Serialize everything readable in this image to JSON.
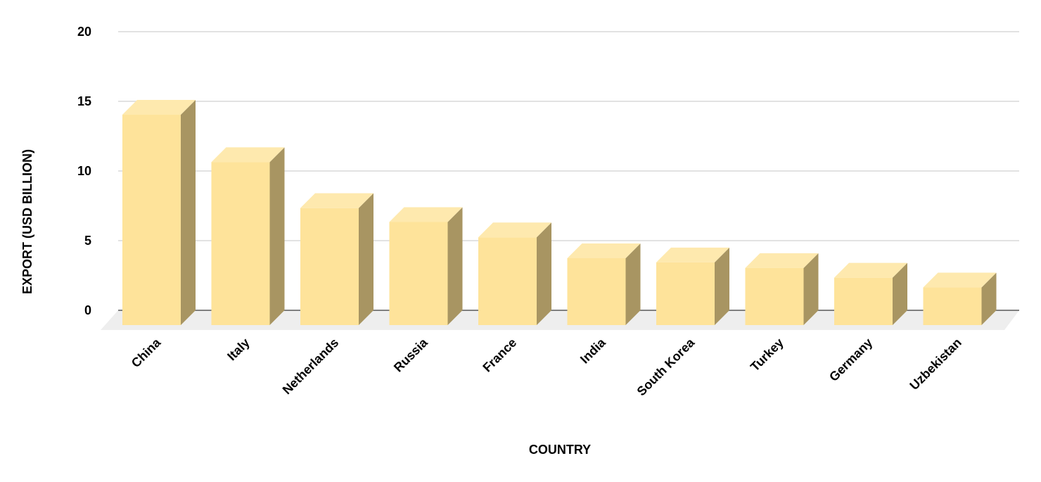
{
  "chart_data": {
    "type": "bar",
    "style": "3d-column",
    "title": "",
    "xlabel": "COUNTRY",
    "ylabel": "EXPORT (USD BILLION)",
    "ylim": [
      0,
      20
    ],
    "yticks": [
      0,
      5,
      10,
      15,
      20
    ],
    "grid": true,
    "legend": "none",
    "categories": [
      "China",
      "Italy",
      "Netherlands",
      "Russia",
      "France",
      "India",
      "South Korea",
      "Turkey",
      "Germany",
      "Uzbekistan"
    ],
    "values": [
      15.1,
      11.7,
      8.4,
      7.4,
      6.3,
      4.8,
      4.5,
      4.1,
      3.4,
      2.7
    ],
    "colors": {
      "front": "#FEE39A",
      "top": "#FEE9AE",
      "side": "#A89562",
      "floor": "#EEEEEE",
      "grid": "#D9D9D9",
      "axis": "#7F7F7F"
    }
  }
}
